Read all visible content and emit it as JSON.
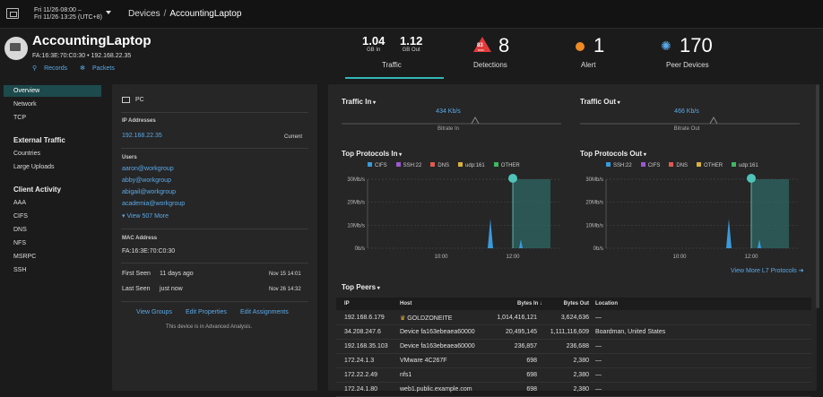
{
  "topbar": {
    "time_line1": "Fri 11/26·08:00 –",
    "time_line2": "Fri 11/26·13:25 (UTC+8)",
    "breadcrumb_root": "Devices",
    "breadcrumb_sep": "/",
    "breadcrumb_current": "AccountingLaptop"
  },
  "device": {
    "name": "AccountingLaptop",
    "mac_ip": "FA:16:3E:70:C0:30  •  192.168.22.35",
    "records_label": "Records",
    "packets_label": "Packets"
  },
  "metrics": {
    "gb_in_value": "1.04",
    "gb_in_label": "GB In",
    "gb_out_value": "1.12",
    "gb_out_label": "GB Out",
    "traffic_label": "Traffic",
    "detections_value": "8",
    "detections_badge": "83",
    "detections_badge_sub": "RISK",
    "detections_label": "Detections",
    "alert_value": "1",
    "alert_label": "Alert",
    "peers_value": "170",
    "peers_label": "Peer Devices"
  },
  "sidebar": {
    "overview": "Overview",
    "network": "Network",
    "tcp": "TCP",
    "external_head": "External Traffic",
    "countries": "Countries",
    "large_uploads": "Large Uploads",
    "client_head": "Client Activity",
    "aaa": "AAA",
    "cifs": "CIFS",
    "dns": "DNS",
    "nfs": "NFS",
    "msrpc": "MSRPC",
    "ssh": "SSH"
  },
  "details": {
    "type": "PC",
    "ip_head": "IP Addresses",
    "ip": "192.168.22.35",
    "ip_status": "Current",
    "users_head": "Users",
    "users": [
      "aaron@workgroup",
      "abby@workgroup",
      "abigail@workgroup",
      "academia@workgroup"
    ],
    "view_more": "View 507 More",
    "mac_head": "MAC Address",
    "mac": "FA:16:3E:70:C0:30",
    "first_seen_label": "First Seen",
    "first_seen_rel": "11 days ago",
    "first_seen_date": "Nov 15 14:01",
    "last_seen_label": "Last Seen",
    "last_seen_rel": "just now",
    "last_seen_date": "Nov 26 14:32",
    "view_groups": "View Groups",
    "edit_properties": "Edit Properties",
    "edit_assignments": "Edit Assignments",
    "footnote": "This device is in Advanced Analysis."
  },
  "traffic_in": {
    "title": "Traffic In",
    "rate": "434 Kb/s",
    "label": "Bitrate In"
  },
  "traffic_out": {
    "title": "Traffic Out",
    "rate": "466 Kb/s",
    "label": "Bitrate Out"
  },
  "protocols_in": {
    "title": "Top Protocols In",
    "legend": [
      {
        "name": "CIFS",
        "color": "#3a9ad9"
      },
      {
        "name": "SSH:22",
        "color": "#9b59d0"
      },
      {
        "name": "DNS",
        "color": "#e05a4f"
      },
      {
        "name": "udp:161",
        "color": "#d9b23a"
      },
      {
        "name": "OTHER",
        "color": "#3fb85f"
      }
    ],
    "yticks": [
      "30Mb/s",
      "20Mb/s",
      "10Mb/s",
      "0b/s"
    ],
    "xticks": [
      "10:00",
      "12:00"
    ]
  },
  "protocols_out": {
    "title": "Top Protocols Out",
    "legend": [
      {
        "name": "SSH:22",
        "color": "#3a9ad9"
      },
      {
        "name": "CIFS",
        "color": "#9b59d0"
      },
      {
        "name": "DNS",
        "color": "#e05a4f"
      },
      {
        "name": "OTHER",
        "color": "#d9b23a"
      },
      {
        "name": "udp:161",
        "color": "#3fb85f"
      }
    ],
    "yticks": [
      "30Mb/s",
      "20Mb/s",
      "10Mb/s",
      "0b/s"
    ],
    "xticks": [
      "10:00",
      "12:00"
    ]
  },
  "view_more_l7": "View More L7 Protocols",
  "peers": {
    "title": "Top Peers",
    "headers": [
      "IP",
      "Host",
      "Bytes In ↓",
      "Bytes Out",
      "Location"
    ],
    "rows": [
      [
        "192.168.6.179",
        "GOLDZONEITE",
        "1,014,416,121",
        "3,624,636",
        "—"
      ],
      [
        "34.208.247.6",
        "Device fa163ebeaea60000",
        "20,495,145",
        "1,111,116,609",
        "Boardman, United States"
      ],
      [
        "192.168.35.103",
        "Device fa163ebeaea60000",
        "236,857",
        "236,688",
        "—"
      ],
      [
        "172.24.1.3",
        "VMware 4C267F",
        "698",
        "2,380",
        "—"
      ],
      [
        "172.22.2.49",
        "nfs1",
        "698",
        "2,380",
        "—"
      ],
      [
        "172.24.1.80",
        "web1.public.example.com",
        "698",
        "2,380",
        "—"
      ]
    ]
  }
}
